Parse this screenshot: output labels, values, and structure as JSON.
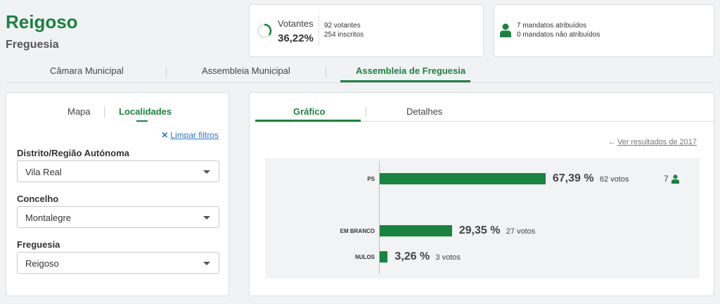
{
  "header": {
    "title": "Reigoso",
    "subtitle": "Freguesia"
  },
  "votantes": {
    "label": "Votantes",
    "percent": "36,22%",
    "percent_value": 36.22,
    "votantes": "92 votantes",
    "inscritos": "254 inscritos"
  },
  "mandatos": {
    "atribuidos": "7 mandatos atribuídos",
    "nao_atribuidos": "0 mandatos não atribuídos"
  },
  "top_tabs": [
    {
      "label": "Câmara Municipal",
      "active": false
    },
    {
      "label": "Assembleia Municipal",
      "active": false
    },
    {
      "label": "Assembleia de Freguesia",
      "active": true
    }
  ],
  "left_panel": {
    "tabs": [
      {
        "label": "Mapa",
        "active": false
      },
      {
        "label": "Localidades",
        "active": true
      }
    ],
    "clear_filters": "Limpar filtros",
    "filters": [
      {
        "label": "Distrito/Região Autónoma",
        "value": "Vila Real"
      },
      {
        "label": "Concelho",
        "value": "Montalegre"
      },
      {
        "label": "Freguesia",
        "value": "Reigoso"
      }
    ]
  },
  "right_panel": {
    "tabs": [
      {
        "label": "Gráfico",
        "active": true
      },
      {
        "label": "Detalhes",
        "active": false
      }
    ],
    "previous_results": "Ver resultados de 2017"
  },
  "colors": {
    "accent": "#17843f",
    "link": "#2a78c8"
  },
  "icons": {
    "ring": "progress-ring-icon",
    "person": "person-icon",
    "clear": "close-icon",
    "back": "arrow-left-icon",
    "caret": "caret-down-icon"
  },
  "chart_data": {
    "type": "bar",
    "orientation": "horizontal",
    "categories": [
      "PS",
      "EM BRANCO",
      "NULOS"
    ],
    "values": [
      67.39,
      29.35,
      3.26
    ],
    "value_labels": [
      "67,39 %",
      "29,35 %",
      "3,26 %"
    ],
    "votes": [
      "62 votos",
      "27 votos",
      "3 votos"
    ],
    "mandates": [
      "7",
      "",
      ""
    ],
    "xlim": [
      0,
      100
    ],
    "grid": false
  }
}
